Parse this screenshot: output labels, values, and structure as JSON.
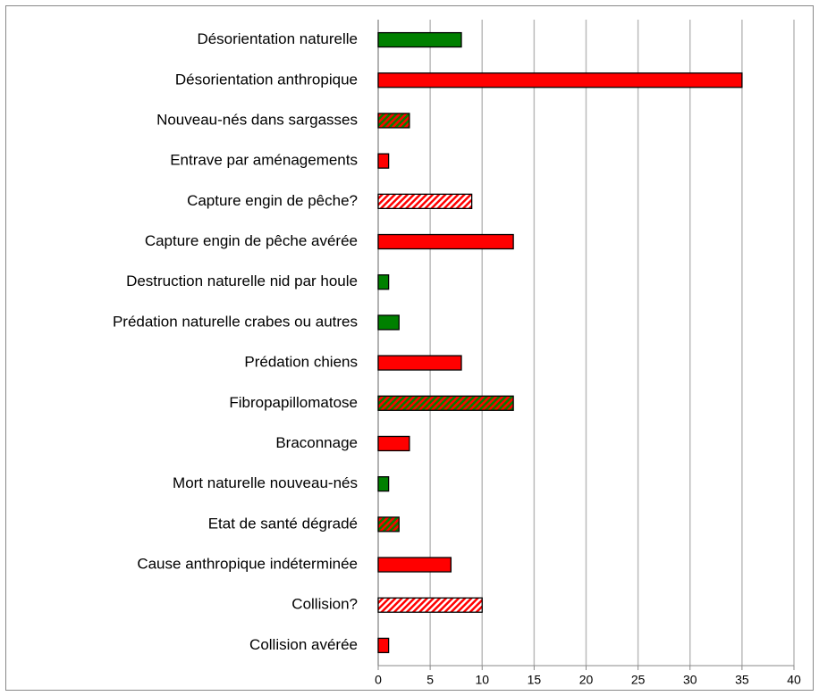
{
  "chart_data": {
    "type": "hbar",
    "categories": [
      "Désorientation naturelle",
      "Désorientation anthropique",
      "Nouveau-nés dans sargasses",
      "Entrave par aménagements",
      "Capture engin de pêche?",
      "Capture engin de pêche avérée",
      "Destruction naturelle nid par houle",
      "Prédation naturelle crabes ou autres",
      "Prédation chiens",
      "Fibropapillomatose",
      "Braconnage",
      "Mort naturelle nouveau-nés",
      "Etat de santé dégradé",
      "Cause anthropique indéterminée",
      "Collision?",
      "Collision avérée"
    ],
    "values": [
      8,
      35,
      3,
      1,
      9,
      13,
      1,
      2,
      8,
      13,
      3,
      1,
      2,
      7,
      10,
      1
    ],
    "colors": [
      "#008000",
      "#ff0000",
      "#008000",
      "#ff0000",
      "#ffffff",
      "#ff0000",
      "#008000",
      "#008000",
      "#ff0000",
      "#008000",
      "#ff0000",
      "#008000",
      "#008000",
      "#ff0000",
      "#ffffff",
      "#ff0000"
    ],
    "hatch_colors": [
      null,
      null,
      "#ff0000",
      null,
      "#ff0000",
      null,
      null,
      null,
      null,
      "#ff0000",
      null,
      null,
      "#ff0000",
      null,
      "#ff0000",
      null
    ],
    "xlim": [
      0,
      40
    ],
    "xticks": [
      0,
      5,
      10,
      15,
      20,
      25,
      30,
      35,
      40
    ],
    "grid": true
  }
}
